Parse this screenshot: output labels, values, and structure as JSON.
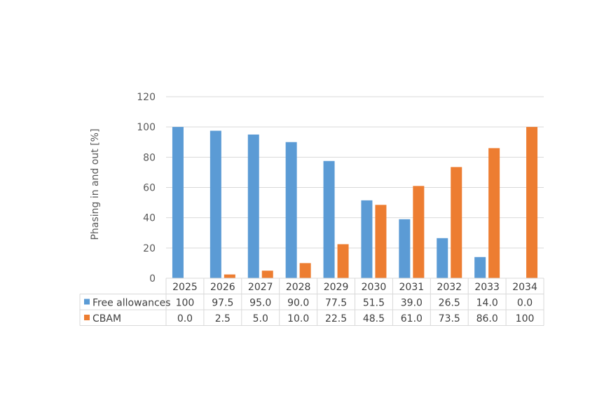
{
  "chart_data": {
    "type": "bar",
    "categories": [
      "2025",
      "2026",
      "2027",
      "2028",
      "2029",
      "2030",
      "2031",
      "2032",
      "2033",
      "2034"
    ],
    "series": [
      {
        "name": "Free allowances",
        "color": "#5B9BD5",
        "values": [
          100,
          97.5,
          95.0,
          90.0,
          77.5,
          51.5,
          39.0,
          26.5,
          14.0,
          0.0
        ],
        "table_labels": [
          "100",
          "97.5",
          "95.0",
          "90.0",
          "77.5",
          "51.5",
          "39.0",
          "26.5",
          "14.0",
          "0.0"
        ]
      },
      {
        "name": "CBAM",
        "color": "#ED7D31",
        "values": [
          0.0,
          2.5,
          5.0,
          10.0,
          22.5,
          48.5,
          61.0,
          73.5,
          86.0,
          100
        ],
        "table_labels": [
          "0.0",
          "2.5",
          "5.0",
          "10.0",
          "22.5",
          "48.5",
          "61.0",
          "73.5",
          "86.0",
          "100"
        ]
      }
    ],
    "ylabel": "Phasing in and out [%]",
    "ylim": [
      0,
      120
    ],
    "yticks": [
      "0",
      "20",
      "40",
      "60",
      "80",
      "100",
      "120"
    ],
    "grid": true,
    "legend": "data-table"
  }
}
